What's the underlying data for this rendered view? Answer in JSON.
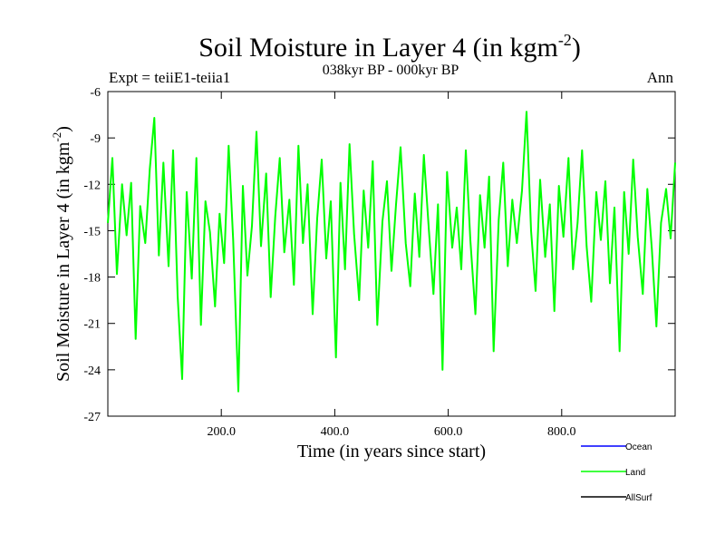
{
  "chart_data": {
    "type": "line",
    "title": "Soil Moisture in Layer 4 (in kgm",
    "title_sup": "-2",
    "title_close": ")",
    "subtitle": "038kyr BP - 000kyr BP",
    "left_label": "Expt = teiiE1-teiia1",
    "right_label": "Ann",
    "xlabel": "Time (in years since start)",
    "ylabel": "Soil Moisture in Layer 4 (in kgm",
    "ylabel_sup": "-2",
    "ylabel_close": ")",
    "xlim": [
      0,
      1000
    ],
    "ylim": [
      -27,
      -6
    ],
    "xticks": [
      200,
      400,
      600,
      800
    ],
    "xtick_labels": [
      "200.0",
      "400.0",
      "600.0",
      "800.0"
    ],
    "yticks": [
      -6,
      -9,
      -12,
      -15,
      -18,
      -21,
      -24,
      -27
    ],
    "ytick_labels": [
      "-6",
      "-9",
      "-12",
      "-15",
      "-18",
      "-21",
      "-24",
      "-27"
    ],
    "series": [
      {
        "name": "Ocean",
        "color": "#0000ff",
        "values": []
      },
      {
        "name": "Land",
        "color": "#00ff00",
        "x": [
          0,
          8,
          16,
          25,
          33,
          41,
          49,
          57,
          66,
          74,
          82,
          90,
          98,
          107,
          115,
          123,
          131,
          139,
          148,
          156,
          164,
          172,
          180,
          189,
          197,
          205,
          213,
          221,
          230,
          238,
          246,
          254,
          262,
          270,
          279,
          287,
          295,
          303,
          311,
          320,
          328,
          336,
          344,
          352,
          361,
          369,
          377,
          385,
          393,
          402,
          410,
          418,
          426,
          434,
          443,
          451,
          459,
          467,
          475,
          484,
          492,
          500,
          508,
          516,
          525,
          533,
          541,
          549,
          557,
          566,
          574,
          582,
          590,
          598,
          607,
          615,
          623,
          631,
          639,
          648,
          656,
          664,
          672,
          680,
          689,
          697,
          705,
          713,
          721,
          730,
          738,
          746,
          754,
          762,
          771,
          779,
          787,
          795,
          803,
          812,
          820,
          828,
          836,
          844,
          852,
          861,
          869,
          877,
          885,
          893,
          902,
          910,
          918,
          926,
          934,
          943,
          951,
          959,
          967,
          975,
          984,
          992,
          1000
        ],
        "values": [
          -14.5,
          -10.3,
          -17.8,
          -12.0,
          -15.3,
          -11.9,
          -22.0,
          -13.4,
          -15.8,
          -11.0,
          -7.7,
          -16.6,
          -10.6,
          -17.3,
          -9.8,
          -19.2,
          -24.6,
          -12.5,
          -18.1,
          -10.3,
          -21.1,
          -13.1,
          -15.1,
          -19.9,
          -13.9,
          -17.1,
          -9.5,
          -15.6,
          -25.4,
          -12.1,
          -17.9,
          -14.7,
          -8.6,
          -16.0,
          -11.3,
          -19.3,
          -14.1,
          -10.3,
          -16.4,
          -13.0,
          -18.5,
          -9.5,
          -15.8,
          -12.0,
          -20.4,
          -14.2,
          -10.4,
          -16.8,
          -13.1,
          -23.2,
          -11.9,
          -17.5,
          -9.4,
          -15.2,
          -19.5,
          -12.4,
          -16.1,
          -10.5,
          -21.1,
          -14.4,
          -11.8,
          -17.6,
          -13.3,
          -9.6,
          -15.8,
          -18.6,
          -12.6,
          -16.7,
          -10.1,
          -15.0,
          -19.1,
          -13.3,
          -24.0,
          -11.2,
          -16.1,
          -13.5,
          -17.5,
          -9.8,
          -15.6,
          -20.4,
          -12.7,
          -16.1,
          -11.5,
          -22.8,
          -14.3,
          -10.6,
          -17.3,
          -13.0,
          -15.8,
          -12.4,
          -7.3,
          -15.0,
          -18.9,
          -11.7,
          -16.7,
          -13.3,
          -20.2,
          -12.1,
          -15.4,
          -10.3,
          -17.5,
          -14.5,
          -9.8,
          -16.0,
          -19.6,
          -12.5,
          -15.6,
          -11.8,
          -18.4,
          -13.5,
          -22.8,
          -12.5,
          -16.5,
          -10.4,
          -15.4,
          -19.1,
          -12.3,
          -16.2,
          -21.2,
          -14.5,
          -12.3,
          -15.5,
          -10.6
        ]
      },
      {
        "name": "AllSurf",
        "color": "#000000",
        "values": []
      }
    ],
    "legend_position": "bottom-right",
    "grid": false
  }
}
